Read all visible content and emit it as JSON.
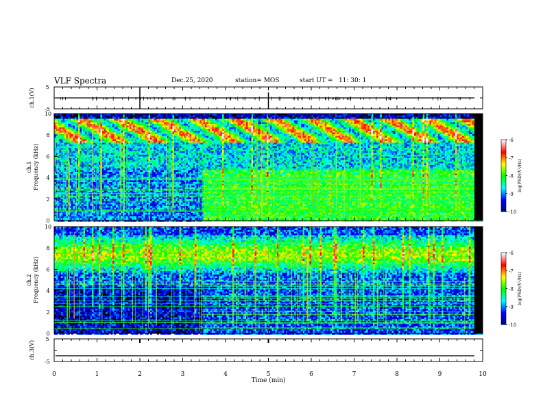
{
  "header": {
    "title": "VLF Spectra",
    "date": "Dec.25, 2020",
    "station": "station= MOS",
    "start_ut": "start UT =   11: 30: 1"
  },
  "chart_data": [
    {
      "type": "line",
      "panel": "ch1-voltage",
      "ylabel": "ch.1(V)",
      "ylim": [
        -5,
        5
      ],
      "yticks": [
        "5",
        "-5"
      ],
      "x": [
        0,
        10
      ],
      "values": [
        0,
        0
      ],
      "note_marks_text": ""
    },
    {
      "type": "heatmap",
      "panel": "ch1-spectrogram",
      "ylabel_line1": "ch.1",
      "ylabel_line2": "Frequency (kHz)",
      "ylim": [
        0,
        10
      ],
      "yticks": [
        "0",
        "2",
        "4",
        "6",
        "8",
        "10"
      ],
      "xlim": [
        0,
        10
      ],
      "color_range": [
        -10,
        -6
      ],
      "colorbar_label": "log(PSD)(V²/Hz)",
      "colorbar_ticks": [
        "-6",
        "-7",
        "-8",
        "-9",
        "-10"
      ],
      "regime_change_min": 3.45
    },
    {
      "type": "heatmap",
      "panel": "ch2-spectrogram",
      "ylabel_line1": "ch.2",
      "ylabel_line2": "Frequency (kHz)",
      "ylim": [
        0,
        10
      ],
      "yticks": [
        "0",
        "2",
        "4",
        "6",
        "8",
        "10"
      ],
      "xlim": [
        0,
        10
      ],
      "color_range": [
        -10,
        -6
      ],
      "colorbar_label": "log(PSD)(V²/Hz)",
      "colorbar_ticks": [
        "-6",
        "-7",
        "-8",
        "-9",
        "-10"
      ],
      "regime_change_min": 3.45
    },
    {
      "type": "line",
      "panel": "ch3-voltage",
      "ylabel": "ch.3(V)",
      "ylim": [
        -5,
        5
      ],
      "yticks": [
        "5",
        "-5"
      ],
      "x": [
        0,
        10
      ],
      "values": [
        -2.5,
        -2.5
      ]
    }
  ],
  "x_axis": {
    "label": "Time (min)",
    "ticks": [
      "0",
      "1",
      "2",
      "3",
      "4",
      "5",
      "6",
      "7",
      "8",
      "9",
      "10"
    ]
  },
  "colors": {
    "colormap": [
      "#000080",
      "#0000ff",
      "#00ffff",
      "#00ff00",
      "#ffff00",
      "#ff0000",
      "#ffffff"
    ]
  }
}
